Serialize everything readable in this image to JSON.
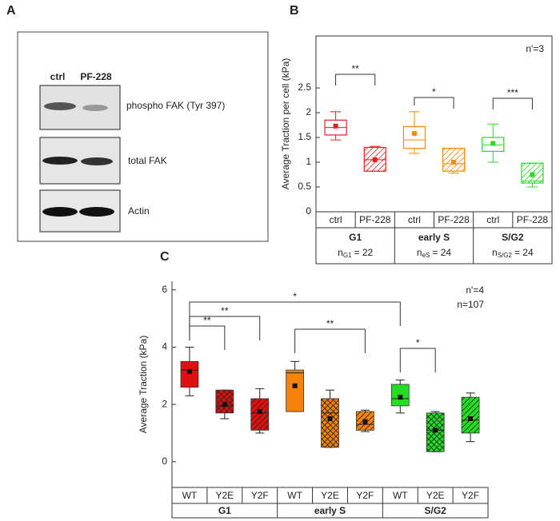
{
  "blot": {
    "panel": "A",
    "lanes": [
      "ctrl",
      "PF-228"
    ],
    "rows": [
      "phospho FAK (Tyr 397)",
      "total FAK",
      "Actin"
    ]
  },
  "chart_data": [
    {
      "panel": "B",
      "type": "box",
      "style": "outline",
      "ylabel": "Average Traction per cell (kPa)",
      "ylim": [
        0,
        3.55
      ],
      "yticks": [
        0,
        0.5,
        1,
        1.5,
        2,
        2.5
      ],
      "annotations": [
        "n'=3"
      ],
      "categories": [
        "ctrl",
        "PF-228",
        "ctrl",
        "PF-228",
        "ctrl",
        "PF-228"
      ],
      "groups": [
        {
          "name": "G1",
          "n": "n",
          "n_sub": "G1",
          "n_eq": "= 22"
        },
        {
          "name": "early S",
          "n": "n",
          "n_sub": "eS",
          "n_eq": "= 24"
        },
        {
          "name": "S/G2",
          "n": "n",
          "n_sub": "S/G2",
          "n_eq": "= 24"
        }
      ],
      "boxes": [
        {
          "min": 1.45,
          "q1": 1.55,
          "median": 1.7,
          "q3": 1.85,
          "max": 2.02,
          "mean": 1.73,
          "color": "#e02020",
          "pattern": "none"
        },
        {
          "min": 0.82,
          "q1": 0.82,
          "median": 1.05,
          "q3": 1.3,
          "max": 1.32,
          "mean": 1.05,
          "color": "#e02020",
          "pattern": "hatch"
        },
        {
          "min": 1.18,
          "q1": 1.28,
          "median": 1.45,
          "q3": 1.72,
          "max": 2.02,
          "mean": 1.58,
          "color": "#f58a07",
          "pattern": "none"
        },
        {
          "min": 0.78,
          "q1": 0.82,
          "median": 0.97,
          "q3": 1.28,
          "max": 1.28,
          "mean": 1.0,
          "color": "#f58a07",
          "pattern": "hatch"
        },
        {
          "min": 1.0,
          "q1": 1.22,
          "median": 1.35,
          "q3": 1.5,
          "max": 1.77,
          "mean": 1.38,
          "color": "#2bd82b",
          "pattern": "none"
        },
        {
          "min": 0.5,
          "q1": 0.58,
          "median": 0.62,
          "q3": 0.98,
          "max": 0.98,
          "mean": 0.75,
          "color": "#2bd82b",
          "pattern": "hatch"
        }
      ],
      "brackets": [
        {
          "from": 0,
          "to": 1,
          "label": "**"
        },
        {
          "from": 2,
          "to": 3,
          "label": "*"
        },
        {
          "from": 4,
          "to": 5,
          "label": "***"
        }
      ]
    },
    {
      "panel": "C",
      "type": "box",
      "style": "filled",
      "ylabel": "Average Traction (kPa)",
      "ylim": [
        -0.9,
        6.3
      ],
      "yticks": [
        0,
        2,
        4,
        6
      ],
      "annotations": [
        "n'=4",
        "n=107"
      ],
      "categories": [
        "WT",
        "Y2E",
        "Y2F",
        "WT",
        "Y2E",
        "Y2F",
        "WT",
        "Y2E",
        "Y2F"
      ],
      "groups": [
        {
          "name": "G1"
        },
        {
          "name": "early S"
        },
        {
          "name": "S/G2"
        }
      ],
      "boxes": [
        {
          "min": 2.3,
          "q1": 2.6,
          "median": 3.2,
          "q3": 3.5,
          "max": 4.0,
          "mean": 3.15,
          "color": "#e01010",
          "pattern": "none"
        },
        {
          "min": 1.5,
          "q1": 1.7,
          "median": 1.95,
          "q3": 2.5,
          "max": 2.5,
          "mean": 2.0,
          "color": "#e01010",
          "pattern": "cross"
        },
        {
          "min": 1.0,
          "q1": 1.1,
          "median": 1.7,
          "q3": 2.2,
          "max": 2.55,
          "mean": 1.75,
          "color": "#e01010",
          "pattern": "hatch"
        },
        {
          "min": 1.75,
          "q1": 1.75,
          "median": 3.1,
          "q3": 3.2,
          "max": 3.5,
          "mean": 2.65,
          "color": "#f5820a",
          "pattern": "none"
        },
        {
          "min": 0.5,
          "q1": 0.5,
          "median": 1.7,
          "q3": 2.2,
          "max": 2.5,
          "mean": 1.5,
          "color": "#f5820a",
          "pattern": "cross"
        },
        {
          "min": 1.05,
          "q1": 1.1,
          "median": 1.3,
          "q3": 1.75,
          "max": 1.8,
          "mean": 1.4,
          "color": "#f5820a",
          "pattern": "hatch"
        },
        {
          "min": 1.7,
          "q1": 1.95,
          "median": 2.2,
          "q3": 2.7,
          "max": 2.85,
          "mean": 2.25,
          "color": "#22dd22",
          "pattern": "none"
        },
        {
          "min": 0.35,
          "q1": 0.35,
          "median": 1.1,
          "q3": 1.7,
          "max": 1.75,
          "mean": 1.1,
          "color": "#22dd22",
          "pattern": "cross"
        },
        {
          "min": 0.7,
          "q1": 1.0,
          "median": 1.45,
          "q3": 2.25,
          "max": 2.4,
          "mean": 1.5,
          "color": "#22dd22",
          "pattern": "hatch"
        }
      ],
      "brackets": [
        {
          "from": 0,
          "to": 1,
          "label": "**"
        },
        {
          "from": 0,
          "to": 2,
          "label": "**"
        },
        {
          "from": 0,
          "to": 6,
          "label": "*"
        },
        {
          "from": 3,
          "to": 5,
          "label": "**"
        },
        {
          "from": 6,
          "to": 7,
          "label": "*"
        }
      ]
    }
  ]
}
